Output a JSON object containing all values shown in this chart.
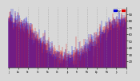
{
  "background_color": "#d8d8d8",
  "plot_bg_color": "#d8d8d8",
  "n_days": 365,
  "num_months": 13,
  "ylim": [
    10,
    100
  ],
  "ytick_values": [
    20,
    30,
    40,
    50,
    60,
    70,
    80,
    90
  ],
  "grid_color": "#888888",
  "bar_width": 0.35,
  "seed": 42,
  "phase_shift": 172,
  "amplitude": 28,
  "mean_temp": 55,
  "noise_scale": 7
}
